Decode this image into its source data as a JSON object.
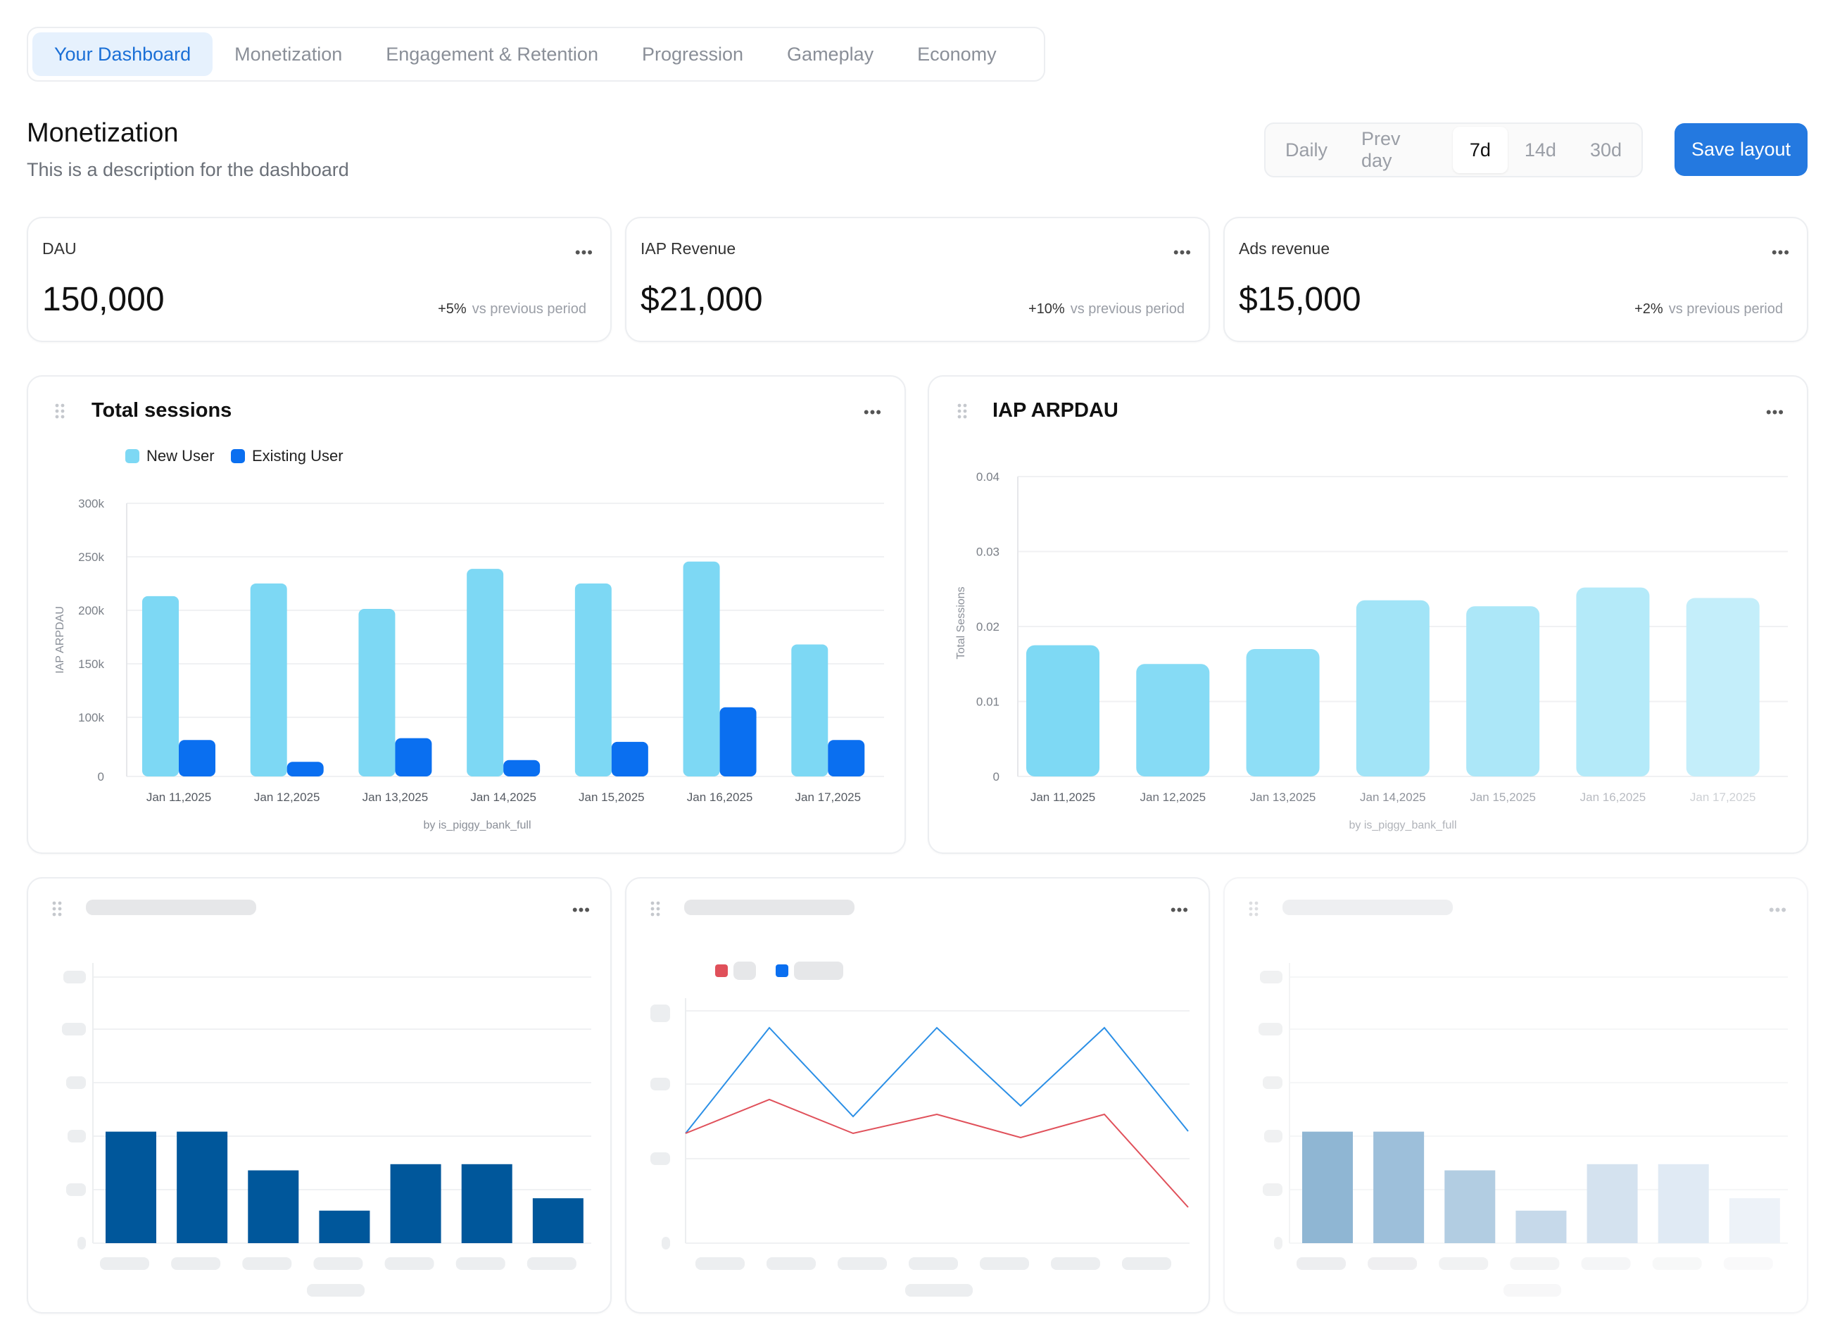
{
  "tabs": [
    {
      "label": "Your Dashboard",
      "active": true
    },
    {
      "label": "Monetization",
      "active": false
    },
    {
      "label": "Engagement & Retention",
      "active": false
    },
    {
      "label": "Progression",
      "active": false
    },
    {
      "label": "Gameplay",
      "active": false
    },
    {
      "label": "Economy",
      "active": false
    }
  ],
  "header": {
    "title": "Monetization",
    "description": "This is a description for the dashboard"
  },
  "range": {
    "options": [
      "Daily",
      "Prev day",
      "7d",
      "14d",
      "30d"
    ],
    "selected": "7d"
  },
  "save_label": "Save layout",
  "kpis": [
    {
      "label": "DAU",
      "value": "150,000",
      "delta": "+5%",
      "delta_text": "vs previous period"
    },
    {
      "label": "IAP Revenue",
      "value": "$21,000",
      "delta": "+10%",
      "delta_text": "vs previous period"
    },
    {
      "label": "Ads revenue",
      "value": "$15,000",
      "delta": "+2%",
      "delta_text": "vs previous period"
    }
  ],
  "icons": {
    "more": "ellipsis-icon",
    "drag": "drag-handle-icon"
  },
  "colors": {
    "accent": "#2479e0",
    "new_user": "#7dd8f4",
    "existing_user": "#0a6ff0",
    "dark_bar": "#00579b",
    "line_blue": "#2b8fe6",
    "line_red": "#e0505a"
  },
  "chart_data": [
    {
      "type": "bar",
      "title": "Total sessions",
      "categories": [
        "Jan 11,2025",
        "Jan 12,2025",
        "Jan 13,2025",
        "Jan 14,2025",
        "Jan 15,2025",
        "Jan 16,2025",
        "Jan 17,2025"
      ],
      "series": [
        {
          "name": "New User",
          "values": [
            198000,
            212000,
            184000,
            228000,
            212000,
            236000,
            145000
          ]
        },
        {
          "name": "Existing User",
          "values": [
            40000,
            16000,
            42000,
            18000,
            38000,
            76000,
            40000
          ]
        }
      ],
      "yticks": [
        "300k",
        "250k",
        "200k",
        "150k",
        "100k",
        "0"
      ],
      "ylim": [
        0,
        300000
      ],
      "ylabel": "IAP ARPDAU",
      "xlabel": "by is_piggy_bank_full",
      "legend": "top-left"
    },
    {
      "type": "bar",
      "title": "IAP ARPDAU",
      "categories": [
        "Jan 11,2025",
        "Jan 12,2025",
        "Jan 13,2025",
        "Jan 14,2025",
        "Jan 15,2025",
        "Jan 16,2025",
        "Jan 17,2025"
      ],
      "series": [
        {
          "values": [
            0.0175,
            0.015,
            0.017,
            0.0235,
            0.0227,
            0.0252,
            0.0238
          ]
        }
      ],
      "yticks": [
        "0.04",
        "0.03",
        "0.02",
        "0.01",
        "0"
      ],
      "ylim": [
        0,
        0.04
      ],
      "ylabel": "Total Sessions",
      "xlabel": "by is_piggy_bank_full"
    },
    {
      "type": "bar",
      "series": [
        {
          "values": [
            0.72,
            0.72,
            0.47,
            0.21,
            0.51,
            0.51,
            0.29
          ]
        }
      ],
      "ylim": [
        0,
        1
      ]
    },
    {
      "type": "line",
      "series": [
        {
          "values": [
            0.52,
            0.68,
            0.52,
            0.61,
            0.5,
            0.61,
            0.17
          ]
        },
        {
          "values": [
            0.52,
            1.02,
            0.6,
            1.02,
            0.65,
            1.02,
            0.53
          ]
        }
      ],
      "ylim": [
        0,
        1.1
      ]
    },
    {
      "type": "bar",
      "series": [
        {
          "values": [
            0.72,
            0.72,
            0.47,
            0.21,
            0.51,
            0.51,
            0.29
          ]
        }
      ],
      "ylim": [
        0,
        1
      ]
    }
  ]
}
